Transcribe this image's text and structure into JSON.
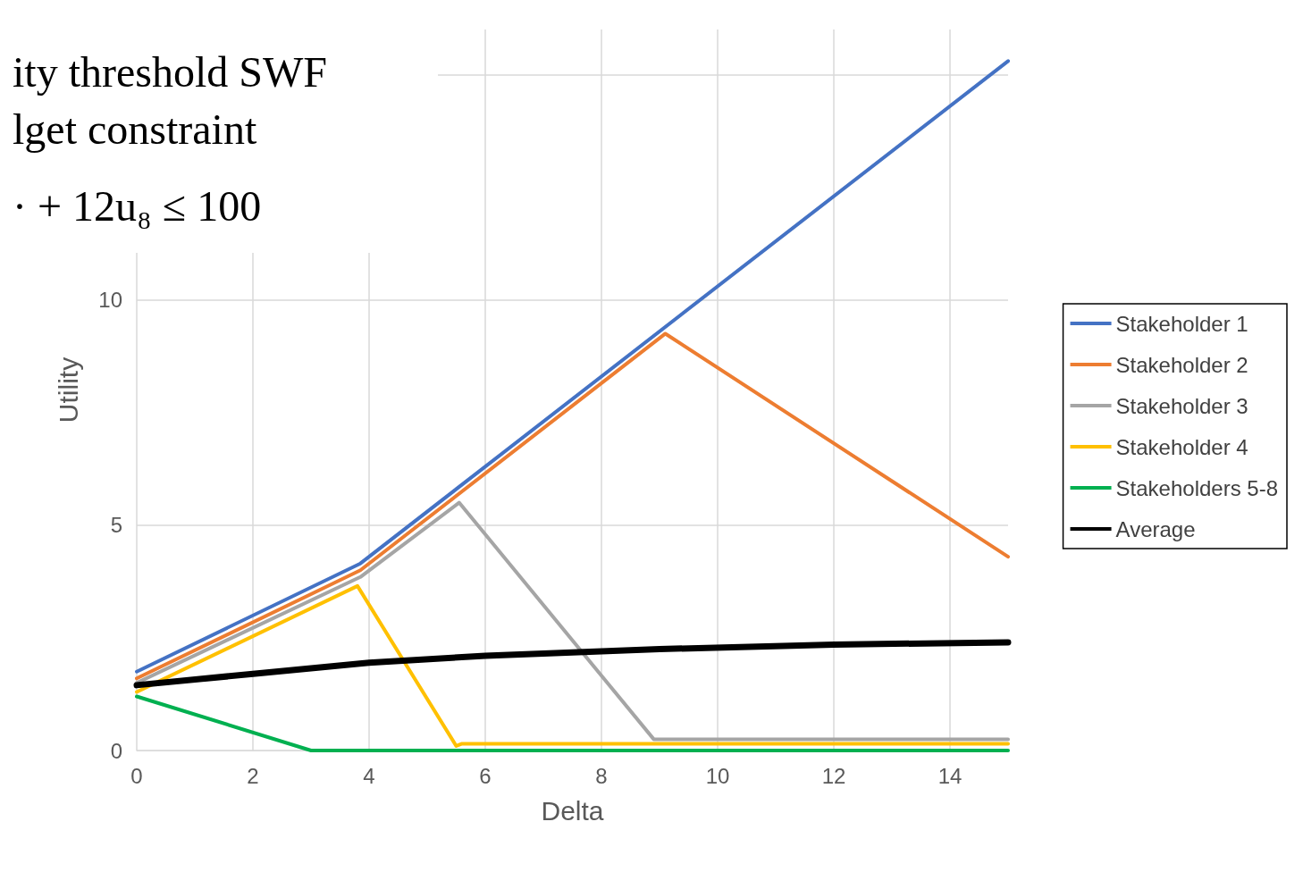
{
  "chart_data": {
    "type": "line",
    "xlabel": "Delta",
    "ylabel": "Utility",
    "annotations": [
      "ity threshold SWF",
      "lget constraint",
      "· + 12u₈ ≤ 100"
    ],
    "xlim": [
      0,
      15
    ],
    "xticks": [
      0,
      2,
      4,
      6,
      8,
      10,
      12,
      14
    ],
    "ylim": [
      0,
      16
    ],
    "yticks": [
      0,
      5,
      10,
      {
        "value": 15,
        "label": null
      }
    ],
    "grid": true,
    "legend": "right",
    "marker": "none",
    "line_style": "solid",
    "series": [
      {
        "name": "Stakeholder 1",
        "color": "#4472c4",
        "x": [
          0,
          3.85,
          15
        ],
        "values": [
          1.75,
          4.15,
          15.3
        ]
      },
      {
        "name": "Stakeholder 2",
        "color": "#ed7d31",
        "x": [
          0,
          3.85,
          9.1,
          15
        ],
        "values": [
          1.6,
          4.0,
          9.25,
          4.3
        ]
      },
      {
        "name": "Stakeholder 3",
        "color": "#a5a5a5",
        "x": [
          0,
          3.85,
          5.55,
          8.9,
          15
        ],
        "values": [
          1.5,
          3.85,
          5.5,
          0.25,
          0.25
        ]
      },
      {
        "name": "Stakeholder 4",
        "color": "#ffc000",
        "x": [
          0,
          3.8,
          5.5,
          5.6,
          15
        ],
        "values": [
          1.3,
          3.65,
          0.1,
          0.15,
          0.15
        ]
      },
      {
        "name": "Stakeholders 5-8",
        "color": "#00b050",
        "x": [
          0,
          3.0,
          15
        ],
        "values": [
          1.2,
          0,
          0
        ]
      },
      {
        "name": "Average",
        "color": "#000000",
        "x": [
          0,
          2,
          4,
          6,
          9,
          12,
          15
        ],
        "values": [
          1.45,
          1.7,
          1.95,
          2.1,
          2.25,
          2.35,
          2.4
        ]
      }
    ]
  }
}
